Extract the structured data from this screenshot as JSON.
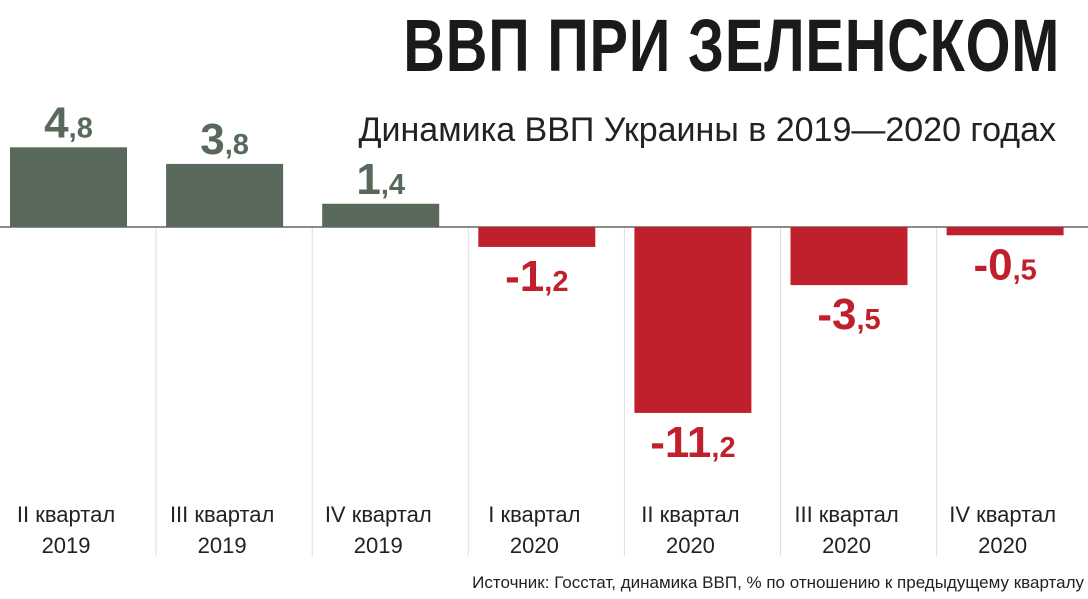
{
  "title": "ВВП ПРИ ЗЕЛЕНСКОМ",
  "subtitle": "Динамика ВВП Украины в 2019—2020 годах",
  "source": "Источник: Госстат, динамика ВВП, % по отношению к предыдущему кварталу",
  "colors": {
    "positive": "#58685a",
    "negative": "#c0202c",
    "divider": "#dddddd",
    "axis": "#666666"
  },
  "chart_data": {
    "type": "bar",
    "title": "Динамика ВВП Украины в 2019—2020 годах",
    "categories": [
      [
        "II квартал",
        "2019"
      ],
      [
        "III квартал",
        "2019"
      ],
      [
        "IV квартал",
        "2019"
      ],
      [
        "I квартал",
        "2020"
      ],
      [
        "II квартал",
        "2020"
      ],
      [
        "III квартал",
        "2020"
      ],
      [
        "IV квартал",
        "2020"
      ]
    ],
    "values": [
      4.8,
      3.8,
      1.4,
      -1.2,
      -11.2,
      -3.5,
      -0.5
    ],
    "value_labels": [
      [
        "4",
        ",8"
      ],
      [
        "3",
        ",8"
      ],
      [
        "1",
        ",4"
      ],
      [
        "-1",
        ",2"
      ],
      [
        "-11",
        ",2"
      ],
      [
        "-3",
        ",5"
      ],
      [
        "-0",
        ",5"
      ]
    ],
    "xlabel": "",
    "ylabel": "",
    "ylim": [
      -11.2,
      4.8
    ],
    "grid": false,
    "legend": "none"
  }
}
